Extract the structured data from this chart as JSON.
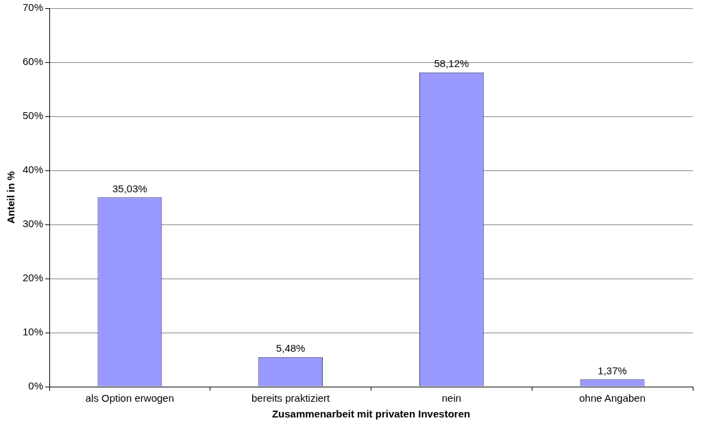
{
  "chart_data": {
    "type": "bar",
    "xlabel": "Zusammenarbeit mit privaten Investoren",
    "ylabel": "Anteil in %",
    "categories": [
      "als Option erwogen",
      "bereits praktiziert",
      "nein",
      "ohne Angaben"
    ],
    "values": [
      35.03,
      5.48,
      58.12,
      1.37
    ],
    "value_labels": [
      "35,03%",
      "5,48%",
      "58,12%",
      "1,37%"
    ],
    "color": "#9999ff",
    "ylim": [
      0,
      70
    ],
    "yticks": [
      {
        "value": 0,
        "label": "0%"
      },
      {
        "value": 10,
        "label": "10%"
      },
      {
        "value": 20,
        "label": "20%"
      },
      {
        "value": 30,
        "label": "30%"
      },
      {
        "value": 40,
        "label": "40%"
      },
      {
        "value": 50,
        "label": "50%"
      },
      {
        "value": 60,
        "label": "60%"
      },
      {
        "value": 70,
        "label": "70%"
      }
    ],
    "grid": "y",
    "legend": false
  }
}
